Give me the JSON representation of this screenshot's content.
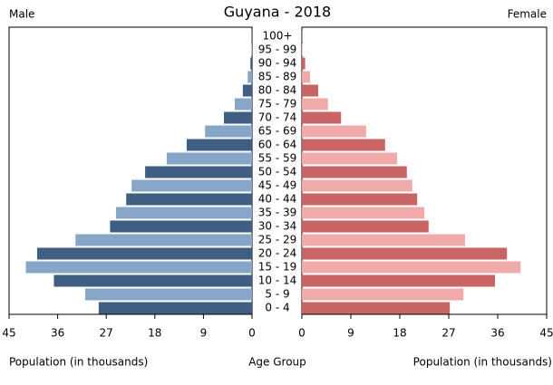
{
  "chart_data": {
    "type": "pyramid",
    "title": "Guyana - 2018",
    "category_label": "Age Group",
    "categories": [
      "0 - 4",
      "5 - 9",
      "10 - 14",
      "15 - 19",
      "20 - 24",
      "25 - 29",
      "30 - 34",
      "35 - 39",
      "40 - 44",
      "45 - 49",
      "50 - 54",
      "55 - 59",
      "60 - 64",
      "65 - 69",
      "70 - 74",
      "75 - 79",
      "80 - 84",
      "85 - 89",
      "90 - 94",
      "95 - 99",
      "100+"
    ],
    "series": [
      {
        "name": "Male",
        "side": "left",
        "colors": [
          "#3f5f82",
          "#87a7c9"
        ],
        "xlabel": "Population (in thousands)",
        "xlim": [
          45,
          0
        ],
        "xticks": [
          45,
          36,
          27,
          18,
          9,
          0
        ],
        "values": [
          28.4,
          30.9,
          36.7,
          41.9,
          39.8,
          32.7,
          26.3,
          25.2,
          23.3,
          22.3,
          19.8,
          15.8,
          12.1,
          8.7,
          5.2,
          3.2,
          1.7,
          0.8,
          0.3,
          0.1,
          0.05
        ]
      },
      {
        "name": "Female",
        "side": "right",
        "colors": [
          "#c86464",
          "#f0aaaa"
        ],
        "xlabel": "Population (in thousands)",
        "xlim": [
          0,
          45
        ],
        "xticks": [
          0,
          9,
          18,
          27,
          36,
          45
        ],
        "values": [
          27.2,
          29.7,
          35.5,
          40.2,
          37.7,
          30.0,
          23.3,
          22.5,
          21.2,
          20.3,
          19.3,
          17.5,
          15.3,
          11.8,
          7.2,
          4.8,
          3.0,
          1.5,
          0.6,
          0.1,
          0.05
        ]
      }
    ]
  }
}
